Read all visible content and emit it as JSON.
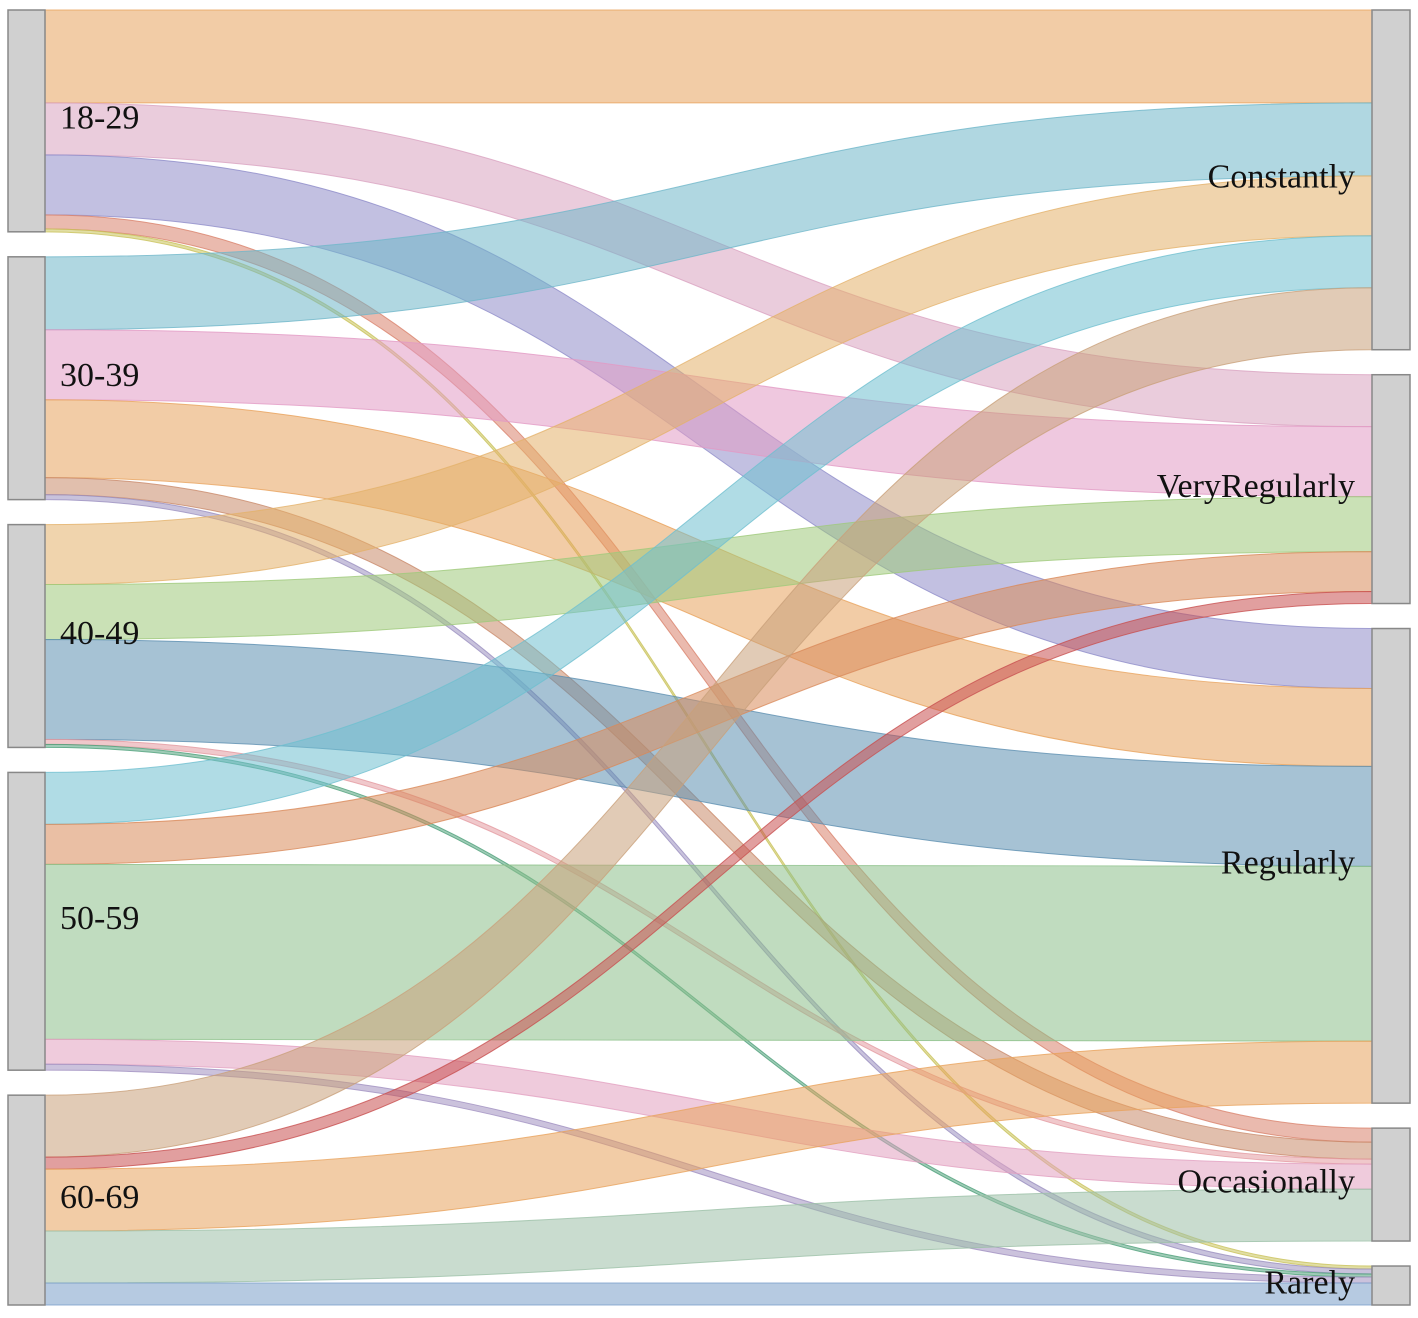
{
  "chart_data": {
    "type": "sankey",
    "sources": [
      "18-29",
      "30-39",
      "40-49",
      "50-59",
      "60-69"
    ],
    "targets": [
      "Constantly",
      "VeryRegularly",
      "Regularly",
      "Occasionally",
      "Rarely"
    ],
    "links": [
      {
        "source": 0,
        "target": 0,
        "value": 93,
        "color": "#e8a35c"
      },
      {
        "source": 0,
        "target": 1,
        "value": 52,
        "color": "#d9a3c0"
      },
      {
        "source": 0,
        "target": 2,
        "value": 60,
        "color": "#8f8cc9"
      },
      {
        "source": 0,
        "target": 3,
        "value": 14,
        "color": "#d9826b"
      },
      {
        "source": 0,
        "target": 4,
        "value": 3,
        "color": "#c9c25a"
      },
      {
        "source": 1,
        "target": 0,
        "value": 73,
        "color": "#6fb7c9"
      },
      {
        "source": 1,
        "target": 1,
        "value": 70,
        "color": "#e29ac4"
      },
      {
        "source": 1,
        "target": 2,
        "value": 78,
        "color": "#e8a35c"
      },
      {
        "source": 1,
        "target": 3,
        "value": 17,
        "color": "#c98a6a"
      },
      {
        "source": 1,
        "target": 4,
        "value": 5,
        "color": "#9a8fbf"
      },
      {
        "source": 2,
        "target": 0,
        "value": 60,
        "color": "#e3b16a"
      },
      {
        "source": 2,
        "target": 1,
        "value": 55,
        "color": "#9fc97a"
      },
      {
        "source": 2,
        "target": 2,
        "value": 100,
        "color": "#5d8fb0"
      },
      {
        "source": 2,
        "target": 3,
        "value": 5,
        "color": "#e39aa0"
      },
      {
        "source": 2,
        "target": 4,
        "value": 3,
        "color": "#4fa07a"
      },
      {
        "source": 3,
        "target": 0,
        "value": 52,
        "color": "#6fbfd0"
      },
      {
        "source": 3,
        "target": 1,
        "value": 40,
        "color": "#d98a5a"
      },
      {
        "source": 3,
        "target": 2,
        "value": 175,
        "color": "#8cc08a"
      },
      {
        "source": 3,
        "target": 3,
        "value": 25,
        "color": "#e2a0c0"
      },
      {
        "source": 3,
        "target": 4,
        "value": 6,
        "color": "#a090c0"
      },
      {
        "source": 4,
        "target": 0,
        "value": 62,
        "color": "#c9a07a"
      },
      {
        "source": 4,
        "target": 1,
        "value": 12,
        "color": "#c85050"
      },
      {
        "source": 4,
        "target": 2,
        "value": 62,
        "color": "#e8a35c"
      },
      {
        "source": 4,
        "target": 3,
        "value": 52,
        "color": "#9cc0a8"
      },
      {
        "source": 4,
        "target": 4,
        "value": 22,
        "color": "#7a9fc9"
      }
    ]
  }
}
